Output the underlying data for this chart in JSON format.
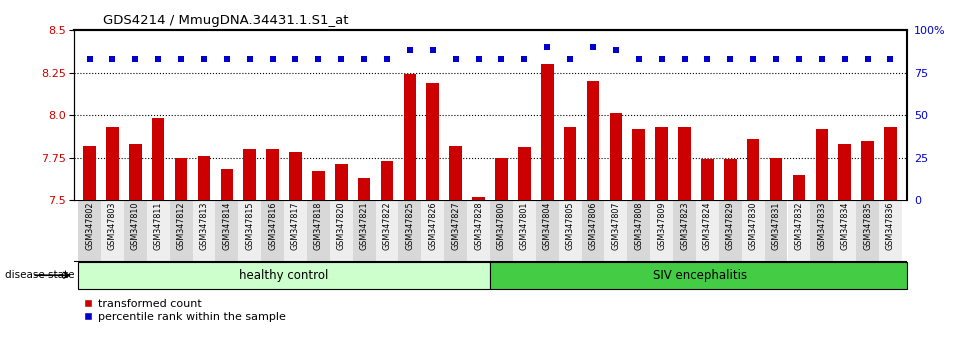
{
  "title": "GDS4214 / MmugDNA.34431.1.S1_at",
  "categories": [
    "GSM347802",
    "GSM347803",
    "GSM347810",
    "GSM347811",
    "GSM347812",
    "GSM347813",
    "GSM347814",
    "GSM347815",
    "GSM347816",
    "GSM347817",
    "GSM347818",
    "GSM347820",
    "GSM347821",
    "GSM347822",
    "GSM347825",
    "GSM347826",
    "GSM347827",
    "GSM347828",
    "GSM347800",
    "GSM347801",
    "GSM347804",
    "GSM347805",
    "GSM347806",
    "GSM347807",
    "GSM347808",
    "GSM347809",
    "GSM347823",
    "GSM347824",
    "GSM347829",
    "GSM347830",
    "GSM347831",
    "GSM347832",
    "GSM347833",
    "GSM347834",
    "GSM347835",
    "GSM347836"
  ],
  "bar_values": [
    7.82,
    7.93,
    7.83,
    7.98,
    7.75,
    7.76,
    7.68,
    7.8,
    7.8,
    7.78,
    7.67,
    7.71,
    7.63,
    7.73,
    8.24,
    8.19,
    7.82,
    7.52,
    7.75,
    7.81,
    8.3,
    7.93,
    8.2,
    8.01,
    7.92,
    7.93,
    7.93,
    7.74,
    7.74,
    7.86,
    7.75,
    7.65,
    7.92,
    7.83,
    7.85,
    7.93
  ],
  "percentile_values": [
    83,
    83,
    83,
    83,
    83,
    83,
    83,
    83,
    83,
    83,
    83,
    83,
    83,
    83,
    88,
    88,
    83,
    83,
    83,
    83,
    90,
    83,
    90,
    88,
    83,
    83,
    83,
    83,
    83,
    83,
    83,
    83,
    83,
    83,
    83,
    83
  ],
  "healthy_count": 18,
  "bar_color": "#cc0000",
  "percentile_color": "#0000cc",
  "healthy_bg": "#ccffcc",
  "siv_bg": "#44cc44",
  "ylim_left": [
    7.5,
    8.5
  ],
  "ylim_right": [
    0,
    100
  ],
  "yticks_left": [
    7.5,
    7.75,
    8.0,
    8.25,
    8.5
  ],
  "yticks_right": [
    0,
    25,
    50,
    75,
    100
  ],
  "dotted_lines": [
    7.75,
    8.0,
    8.25
  ],
  "bar_width": 0.55,
  "tick_bg_even": "#d8d8d8",
  "tick_bg_odd": "#eeeeee",
  "legend_labels": [
    "transformed count",
    "percentile rank within the sample"
  ]
}
